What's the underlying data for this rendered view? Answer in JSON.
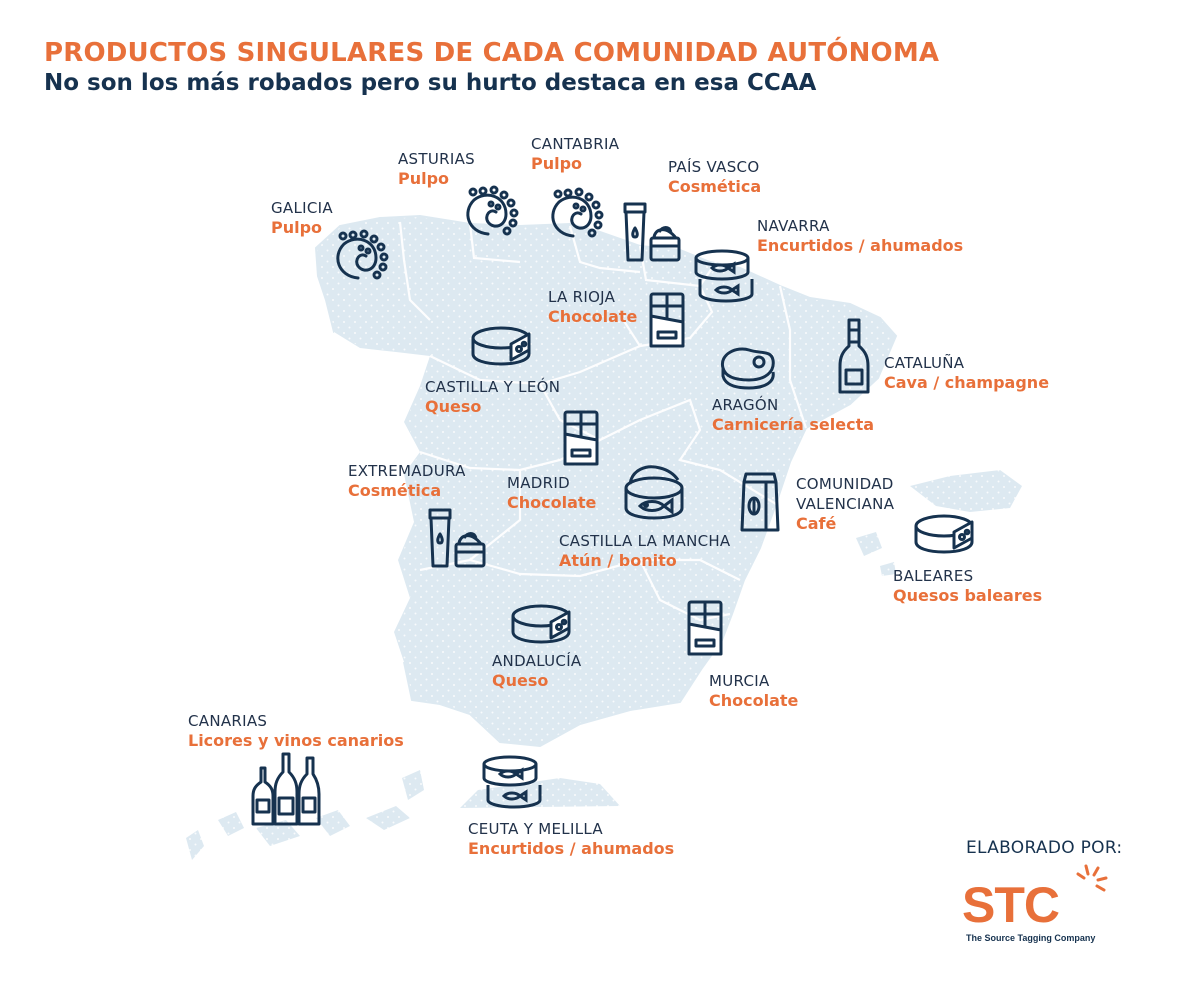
{
  "header": {
    "title": "PRODUCTOS SINGULARES DE CADA COMUNIDAD AUTÓNOMA",
    "subtitle": "No son los más robados pero su hurto destaca en esa CCAA"
  },
  "colors": {
    "accent": "#e8703a",
    "navy": "#16324f",
    "map_fill": "#dde9f1",
    "map_border": "#ffffff"
  },
  "regions": [
    {
      "id": "galicia",
      "name": "GALICIA",
      "product": "Pulpo",
      "icon": "octopus-icon"
    },
    {
      "id": "asturias",
      "name": "ASTURIAS",
      "product": "Pulpo",
      "icon": "octopus-icon"
    },
    {
      "id": "cantabria",
      "name": "CANTABRIA",
      "product": "Pulpo",
      "icon": "octopus-icon"
    },
    {
      "id": "pais-vasco",
      "name": "PAÍS VASCO",
      "product": "Cosmética",
      "icon": "cosmetics-icon"
    },
    {
      "id": "navarra",
      "name": "NAVARRA",
      "product": "Encurtidos / ahumados",
      "icon": "canned-fish-icon"
    },
    {
      "id": "la-rioja",
      "name": "LA RIOJA",
      "product": "Chocolate",
      "icon": "chocolate-bar-icon"
    },
    {
      "id": "castilla-leon",
      "name": "CASTILLA Y LEÓN",
      "product": "Queso",
      "icon": "cheese-icon"
    },
    {
      "id": "cataluna",
      "name": "CATALUÑA",
      "product": "Cava / champagne",
      "icon": "champagne-bottle-icon"
    },
    {
      "id": "aragon",
      "name": "ARAGÓN",
      "product": "Carnicería selecta",
      "icon": "steak-icon"
    },
    {
      "id": "extremadura",
      "name": "EXTREMADURA",
      "product": "Cosmética",
      "icon": "cosmetics-icon"
    },
    {
      "id": "madrid",
      "name": "MADRID",
      "product": "Chocolate",
      "icon": "chocolate-bar-icon"
    },
    {
      "id": "castilla-mancha",
      "name": "CASTILLA LA MANCHA",
      "product": "Atún / bonito",
      "icon": "tuna-can-icon"
    },
    {
      "id": "valenciana",
      "name": "COMUNIDAD",
      "name2": "VALENCIANA",
      "product": "Café",
      "icon": "coffee-bag-icon"
    },
    {
      "id": "baleares",
      "name": "BALEARES",
      "product": "Quesos baleares",
      "icon": "cheese-icon"
    },
    {
      "id": "andalucia",
      "name": "ANDALUCÍA",
      "product": "Queso",
      "icon": "cheese-icon"
    },
    {
      "id": "murcia",
      "name": "MURCIA",
      "product": "Chocolate",
      "icon": "chocolate-bar-icon"
    },
    {
      "id": "canarias",
      "name": "CANARIAS",
      "product": "Licores y vinos canarios",
      "icon": "liquor-bottles-icon"
    },
    {
      "id": "ceuta-melilla",
      "name": "CEUTA Y MELILLA",
      "product": "Encurtidos / ahumados",
      "icon": "canned-fish-icon"
    }
  ],
  "credit": {
    "label": "ELABORADO POR:",
    "logo_text": "STC",
    "logo_tagline": "The Source Tagging Company"
  }
}
